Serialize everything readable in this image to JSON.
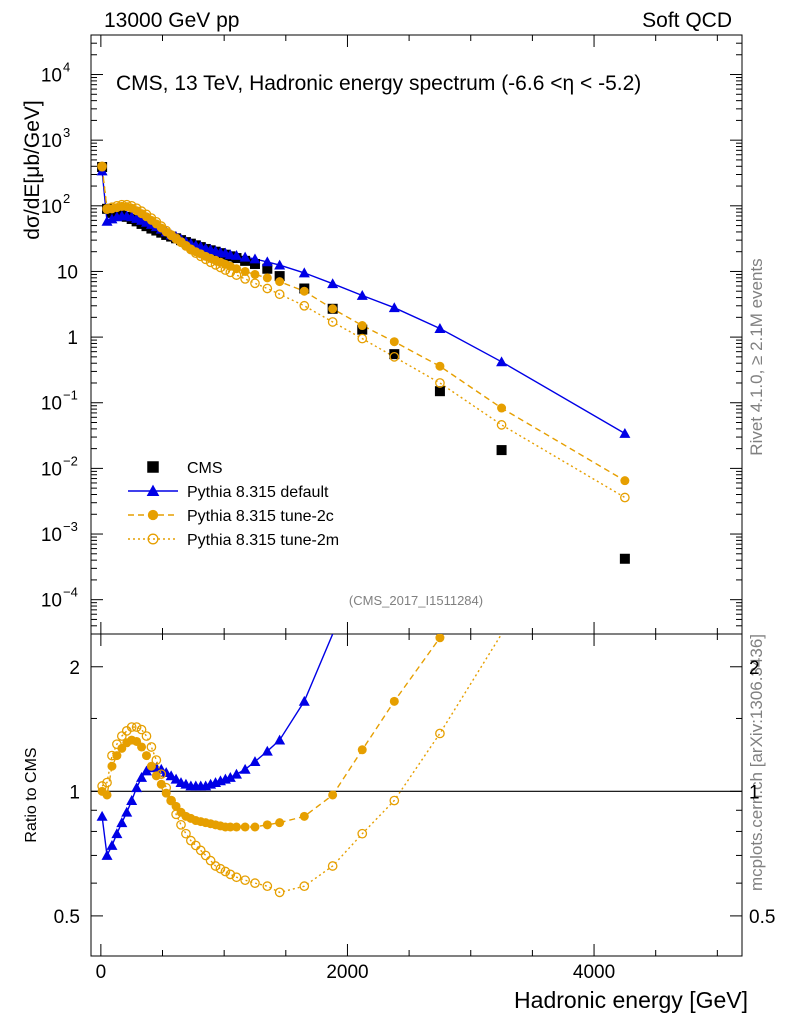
{
  "header": {
    "left": "13000 GeV pp",
    "right": "Soft QCD"
  },
  "side": {
    "rivet": "Rivet 4.1.0, ≥ 2.1M events",
    "source": "mcplots.cern.ch [arXiv:1306.3436]"
  },
  "analysis_id": "(CMS_2017_I1511284)",
  "colors": {
    "cms": "#000000",
    "default": "#0000e6",
    "tune2c": "#e69f00",
    "tune2m": "#e69f00"
  },
  "chart_data": [
    {
      "type": "scatter",
      "title": "CMS, 13 TeV, Hadronic energy spectrum (-6.6 <η < -5.2)",
      "ylabel": "dσ/dE[μb/GeV]",
      "yscale": "log",
      "xlim": [
        -80,
        5200
      ],
      "ylim": [
        3e-05,
        40000
      ],
      "yticks": [
        {
          "v": 0.0001,
          "m": "10",
          "e": "−4"
        },
        {
          "v": 0.001,
          "m": "10",
          "e": "−3"
        },
        {
          "v": 0.01,
          "m": "10",
          "e": "−2"
        },
        {
          "v": 0.1,
          "m": "10",
          "e": "−1"
        },
        {
          "v": 1,
          "m": "1",
          "e": ""
        },
        {
          "v": 10,
          "m": "10",
          "e": ""
        },
        {
          "v": 100,
          "m": "10",
          "e": "2"
        },
        {
          "v": 1000,
          "m": "10",
          "e": "3"
        },
        {
          "v": 10000,
          "m": "10",
          "e": "4"
        }
      ],
      "legend": [
        {
          "key": "cms",
          "label": "CMS"
        },
        {
          "key": "default",
          "label": "Pythia 8.315 default"
        },
        {
          "key": "tune2c",
          "label": "Pythia 8.315 tune-2c"
        },
        {
          "key": "tune2m",
          "label": "Pythia 8.315 tune-2m"
        }
      ],
      "series": [
        {
          "name": "CMS",
          "key": "cms",
          "x": [
            10,
            50,
            90,
            130,
            170,
            210,
            250,
            290,
            330,
            370,
            410,
            450,
            490,
            530,
            570,
            610,
            650,
            690,
            730,
            770,
            810,
            850,
            890,
            930,
            970,
            1010,
            1050,
            1100,
            1170,
            1250,
            1350,
            1450,
            1650,
            1880,
            2120,
            2380,
            2750,
            3250,
            4250
          ],
          "y": [
            390,
            90,
            78,
            76,
            72,
            68,
            63,
            58,
            53,
            49,
            45,
            42,
            39,
            36,
            34,
            32,
            30,
            28,
            26.5,
            25,
            23.5,
            22,
            21,
            20,
            19,
            18,
            17,
            16,
            14.5,
            13,
            11,
            8.5,
            5.5,
            2.7,
            1.3,
            0.55,
            0.15,
            0.019,
            0.00042
          ]
        },
        {
          "name": "Pythia 8.315 default",
          "key": "default",
          "x": [
            10,
            50,
            90,
            130,
            170,
            210,
            250,
            290,
            330,
            370,
            410,
            450,
            490,
            530,
            570,
            610,
            650,
            690,
            730,
            770,
            810,
            850,
            890,
            930,
            970,
            1010,
            1050,
            1100,
            1170,
            1250,
            1350,
            1450,
            1650,
            1880,
            2120,
            2380,
            2750,
            3250,
            4250
          ],
          "y": [
            340,
            58,
            63,
            68,
            70,
            70,
            68,
            64,
            60,
            56,
            52,
            48,
            44,
            40,
            36,
            34,
            31,
            28.5,
            26.5,
            25,
            24,
            22.5,
            21.5,
            20.5,
            19.5,
            19,
            18,
            17.5,
            16.5,
            15.5,
            14,
            12.5,
            9.5,
            6.5,
            4.3,
            2.8,
            1.35,
            0.42,
            0.034
          ]
        },
        {
          "name": "Pythia 8.315 tune-2c",
          "key": "tune2c",
          "x": [
            10,
            50,
            90,
            130,
            170,
            210,
            250,
            290,
            330,
            370,
            410,
            450,
            490,
            530,
            570,
            610,
            650,
            690,
            730,
            770,
            810,
            850,
            890,
            930,
            970,
            1010,
            1050,
            1100,
            1170,
            1250,
            1350,
            1450,
            1650,
            1880,
            2120,
            2380,
            2750,
            3250,
            4250
          ],
          "y": [
            390,
            88,
            90,
            94,
            98,
            97,
            92,
            84,
            76,
            68,
            60,
            53,
            46,
            40,
            35,
            31,
            27.5,
            24.5,
            22,
            20,
            18.5,
            17,
            15.8,
            14.8,
            13.8,
            12.8,
            12,
            11,
            10,
            9,
            8,
            7,
            5,
            2.7,
            1.5,
            0.85,
            0.36,
            0.083,
            0.0065
          ]
        },
        {
          "name": "Pythia 8.315 tune-2m",
          "key": "tune2m",
          "x": [
            10,
            50,
            90,
            130,
            170,
            210,
            250,
            290,
            330,
            370,
            410,
            450,
            490,
            530,
            570,
            610,
            650,
            690,
            730,
            770,
            810,
            850,
            890,
            930,
            970,
            1010,
            1050,
            1100,
            1170,
            1250,
            1350,
            1450,
            1650,
            1880,
            2120,
            2380,
            2750,
            3250,
            4250
          ],
          "y": [
            400,
            90,
            95,
            100,
            104,
            104,
            100,
            92,
            83,
            74,
            65,
            57,
            49,
            42,
            36,
            32,
            28,
            24.5,
            21.5,
            19,
            17,
            15.3,
            13.8,
            12.6,
            11.5,
            10.5,
            9.7,
            8.8,
            7.7,
            6.6,
            5.5,
            4.5,
            3,
            1.7,
            0.95,
            0.5,
            0.2,
            0.046,
            0.0036
          ]
        }
      ]
    },
    {
      "type": "line",
      "title": "",
      "xlabel": "Hadronic energy [GeV]",
      "ylabel": "Ratio to CMS",
      "yscale": "log",
      "xlim": [
        -80,
        5200
      ],
      "ylim": [
        0.4,
        2.4
      ],
      "xticks": [
        0,
        2000,
        4000
      ],
      "yticks": [
        0.5,
        1,
        2
      ],
      "reference_line": 1,
      "series": [
        {
          "name": "Pythia 8.315 default",
          "key": "default",
          "x": [
            10,
            50,
            90,
            130,
            170,
            210,
            250,
            290,
            330,
            370,
            410,
            450,
            490,
            530,
            570,
            610,
            650,
            690,
            730,
            770,
            810,
            850,
            890,
            930,
            970,
            1010,
            1050,
            1100,
            1170,
            1250,
            1350,
            1450,
            1650,
            1880
          ],
          "y": [
            0.87,
            0.7,
            0.74,
            0.79,
            0.84,
            0.89,
            0.95,
            1.02,
            1.08,
            1.12,
            1.14,
            1.14,
            1.13,
            1.11,
            1.09,
            1.07,
            1.05,
            1.04,
            1.03,
            1.03,
            1.03,
            1.03,
            1.04,
            1.05,
            1.06,
            1.07,
            1.08,
            1.1,
            1.13,
            1.18,
            1.25,
            1.33,
            1.65,
            2.4
          ]
        },
        {
          "name": "Pythia 8.315 tune-2c",
          "key": "tune2c",
          "x": [
            10,
            50,
            90,
            130,
            170,
            210,
            250,
            290,
            330,
            370,
            410,
            450,
            490,
            530,
            570,
            610,
            650,
            690,
            730,
            770,
            810,
            850,
            890,
            930,
            970,
            1010,
            1050,
            1100,
            1170,
            1250,
            1350,
            1450,
            1650,
            1880,
            2120,
            2380,
            2750
          ],
          "y": [
            1.0,
            0.98,
            1.15,
            1.22,
            1.27,
            1.31,
            1.33,
            1.32,
            1.28,
            1.22,
            1.15,
            1.09,
            1.04,
            0.99,
            0.95,
            0.92,
            0.89,
            0.87,
            0.86,
            0.85,
            0.845,
            0.84,
            0.835,
            0.83,
            0.825,
            0.82,
            0.82,
            0.82,
            0.82,
            0.82,
            0.83,
            0.84,
            0.87,
            0.98,
            1.26,
            1.65,
            2.35
          ]
        },
        {
          "name": "Pythia 8.315 tune-2m",
          "key": "tune2m",
          "x": [
            10,
            50,
            90,
            130,
            170,
            210,
            250,
            290,
            330,
            370,
            410,
            450,
            490,
            530,
            570,
            610,
            650,
            690,
            730,
            770,
            810,
            850,
            890,
            930,
            970,
            1010,
            1050,
            1100,
            1170,
            1250,
            1350,
            1450,
            1650,
            1880,
            2120,
            2380,
            2750,
            3250
          ],
          "y": [
            1.03,
            1.05,
            1.22,
            1.3,
            1.36,
            1.4,
            1.43,
            1.43,
            1.41,
            1.36,
            1.28,
            1.19,
            1.1,
            1.02,
            0.95,
            0.88,
            0.83,
            0.79,
            0.76,
            0.74,
            0.72,
            0.7,
            0.68,
            0.66,
            0.65,
            0.64,
            0.63,
            0.62,
            0.61,
            0.6,
            0.59,
            0.57,
            0.59,
            0.66,
            0.79,
            0.95,
            1.38,
            2.4
          ]
        }
      ]
    }
  ]
}
